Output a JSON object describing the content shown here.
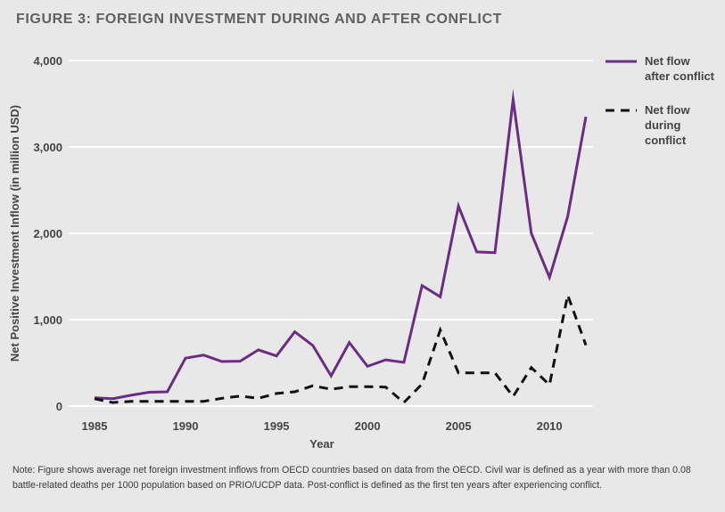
{
  "chart_data": {
    "type": "line",
    "title": "FIGURE 3: FOREIGN INVESTMENT DURING AND AFTER CONFLICT",
    "xlabel": "Year",
    "ylabel": "Net Positive Investment Inflow (in million USD)",
    "xlim": [
      1985,
      2012
    ],
    "ylim": [
      0,
      4000
    ],
    "xticks": [
      1985,
      1990,
      1995,
      2000,
      2005,
      2010
    ],
    "xtick_labels": [
      "1985",
      "1990",
      "1995",
      "2000",
      "2005",
      "2010"
    ],
    "yticks": [
      0,
      1000,
      2000,
      3000,
      4000
    ],
    "ytick_labels": [
      "0",
      "1,000",
      "2,000",
      "3,000",
      "4,000"
    ],
    "grid": true,
    "legend_position": "top-right",
    "x": [
      1985,
      1986,
      1987,
      1988,
      1989,
      1990,
      1991,
      1992,
      1993,
      1994,
      1995,
      1996,
      1997,
      1998,
      1999,
      2000,
      2001,
      2002,
      2003,
      2004,
      2005,
      2006,
      2007,
      2008,
      2009,
      2010,
      2011,
      2012
    ],
    "series": [
      {
        "name": "Net flow after conflict",
        "legend_lines": [
          "Net flow",
          "after conflict"
        ],
        "style": "solid",
        "color": "#6b2d83",
        "values": [
          95,
          85,
          125,
          160,
          165,
          555,
          590,
          515,
          520,
          650,
          580,
          860,
          700,
          350,
          735,
          460,
          535,
          505,
          1395,
          1265,
          2315,
          1785,
          1775,
          3550,
          2000,
          1490,
          2195,
          3350
        ]
      },
      {
        "name": "Net flow during conflict",
        "legend_lines": [
          "Net flow",
          "during",
          "conflict"
        ],
        "style": "dashed",
        "color": "#111111",
        "values": [
          85,
          40,
          55,
          55,
          55,
          55,
          55,
          90,
          115,
          90,
          145,
          165,
          235,
          195,
          225,
          225,
          220,
          40,
          255,
          880,
          385,
          385,
          385,
          110,
          445,
          245,
          1285,
          705
        ]
      }
    ]
  },
  "note": "Note: Figure shows average net foreign investment inflows from OECD countries based on data from the OECD. Civil war is defined as a year with more than 0.08 battle-related deaths per 1000 population based on PRIO/UCDP data. Post-conflict is defined as the first ten years after experiencing conflict."
}
